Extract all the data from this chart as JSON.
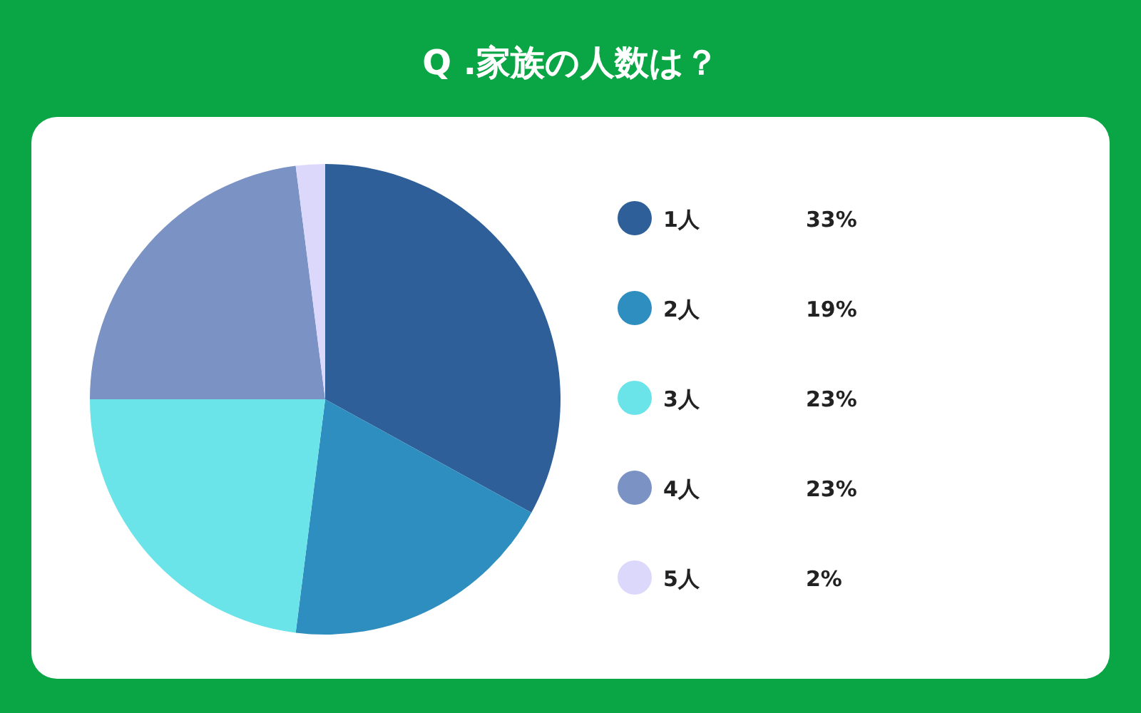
{
  "chart_data": {
    "type": "pie",
    "title": "Q .家族の人数は？",
    "categories": [
      "1人",
      "2人",
      "3人",
      "4人",
      "5人"
    ],
    "values": [
      33,
      19,
      23,
      23,
      2
    ],
    "value_labels": [
      "33%",
      "19%",
      "23%",
      "23%",
      "2%"
    ],
    "colors": [
      "#2e5f99",
      "#2e8ebf",
      "#6ae4e9",
      "#7b93c4",
      "#dcd8fb"
    ],
    "legend": "right"
  }
}
